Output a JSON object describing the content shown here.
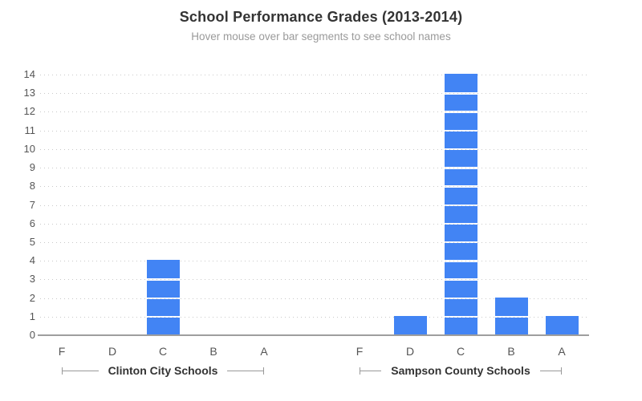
{
  "header": {
    "title": "School Performance Grades (2013-2014)",
    "subtitle": "Hover mouse over bar segments to see school names"
  },
  "chart_data": {
    "type": "bar",
    "variant": "stacked-unit-segments",
    "title": "School Performance Grades (2013-2014)",
    "subtitle": "Hover mouse over bar segments to see school names",
    "categories": [
      "F",
      "D",
      "C",
      "B",
      "A"
    ],
    "groups": [
      {
        "label": "Clinton City Schools",
        "values": [
          0,
          0,
          4,
          0,
          0
        ]
      },
      {
        "label": "Sampson County Schools",
        "values": [
          0,
          1,
          14,
          2,
          1
        ]
      }
    ],
    "ylim": [
      0,
      14
    ],
    "yticks": [
      0,
      1,
      2,
      3,
      4,
      5,
      6,
      7,
      8,
      9,
      10,
      11,
      12,
      13,
      14
    ],
    "xlabel": "",
    "ylabel": "",
    "grid": "dotted-horizontal",
    "legend": "none"
  },
  "colors": {
    "background": "#ffffff",
    "title": "#333333",
    "subtitle": "#9a9a9a",
    "axis_label": "#555555",
    "group_label": "#333333",
    "gridline": "#c9c9c9",
    "baseline": "#9e9e9e",
    "bracket": "#999999",
    "bar": "#4284f4",
    "segment_divider": "#ffffff"
  }
}
